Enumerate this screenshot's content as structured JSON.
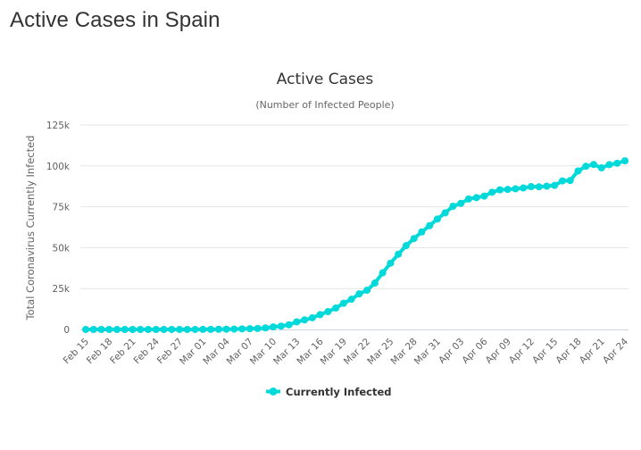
{
  "page": {
    "title": "Active Cases in Spain"
  },
  "colors": {
    "series": "#00d9d9",
    "text": "#333333",
    "grid": "#e6e6e6",
    "axis": "#ccd6eb"
  },
  "chart_data": {
    "type": "line",
    "title": "Active Cases",
    "subtitle": "(Number of Infected People)",
    "xlabel": "",
    "ylabel": "Total Coronavirus Currently Infected",
    "ylim": [
      0,
      125000
    ],
    "yticks": [
      0,
      25000,
      50000,
      75000,
      100000,
      125000
    ],
    "ytick_labels": [
      "0",
      "25k",
      "50k",
      "75k",
      "100k",
      "125k"
    ],
    "grid": true,
    "legend": {
      "position": "bottom-center",
      "entries": [
        "Currently Infected"
      ]
    },
    "xtick_labels": [
      "Feb 15",
      "Feb 18",
      "Feb 21",
      "Feb 24",
      "Feb 27",
      "Mar 01",
      "Mar 04",
      "Mar 07",
      "Mar 10",
      "Mar 13",
      "Mar 16",
      "Mar 19",
      "Mar 22",
      "Mar 25",
      "Mar 28",
      "Mar 31",
      "Apr 03",
      "Apr 06",
      "Apr 09",
      "Apr 12",
      "Apr 15",
      "Apr 18",
      "Apr 21",
      "Apr 24"
    ],
    "x": [
      "Feb 15",
      "Feb 16",
      "Feb 17",
      "Feb 18",
      "Feb 19",
      "Feb 20",
      "Feb 21",
      "Feb 22",
      "Feb 23",
      "Feb 24",
      "Feb 25",
      "Feb 26",
      "Feb 27",
      "Feb 28",
      "Feb 29",
      "Mar 01",
      "Mar 02",
      "Mar 03",
      "Mar 04",
      "Mar 05",
      "Mar 06",
      "Mar 07",
      "Mar 08",
      "Mar 09",
      "Mar 10",
      "Mar 11",
      "Mar 12",
      "Mar 13",
      "Mar 14",
      "Mar 15",
      "Mar 16",
      "Mar 17",
      "Mar 18",
      "Mar 19",
      "Mar 20",
      "Mar 21",
      "Mar 22",
      "Mar 23",
      "Mar 24",
      "Mar 25",
      "Mar 26",
      "Mar 27",
      "Mar 28",
      "Mar 29",
      "Mar 30",
      "Mar 31",
      "Apr 01",
      "Apr 02",
      "Apr 03",
      "Apr 04",
      "Apr 05",
      "Apr 06",
      "Apr 07",
      "Apr 08",
      "Apr 09",
      "Apr 10",
      "Apr 11",
      "Apr 12",
      "Apr 13",
      "Apr 14",
      "Apr 15",
      "Apr 16",
      "Apr 17",
      "Apr 18",
      "Apr 19",
      "Apr 20",
      "Apr 21",
      "Apr 22",
      "Apr 23",
      "Apr 24"
    ],
    "series": [
      {
        "name": "Currently Infected",
        "values": [
          2,
          2,
          2,
          2,
          2,
          2,
          2,
          2,
          2,
          2,
          6,
          11,
          13,
          22,
          30,
          45,
          75,
          112,
          162,
          218,
          352,
          479,
          613,
          956,
          1588,
          2051,
          2859,
          4632,
          5845,
          7137,
          9068,
          10895,
          13105,
          16026,
          18463,
          21772,
          23960,
          28372,
          34642,
          40501,
          46001,
          51224,
          55566,
          59630,
          63460,
          67504,
          71305,
          75335,
          77103,
          79779,
          80607,
          81540,
          83884,
          85351,
          85610,
          85990,
          86524,
          87312,
          87231,
          87616,
          88083,
          90836,
          91064,
          96886,
          99721,
          100864,
          98771,
          100757,
          101617,
          103103
        ]
      }
    ]
  }
}
